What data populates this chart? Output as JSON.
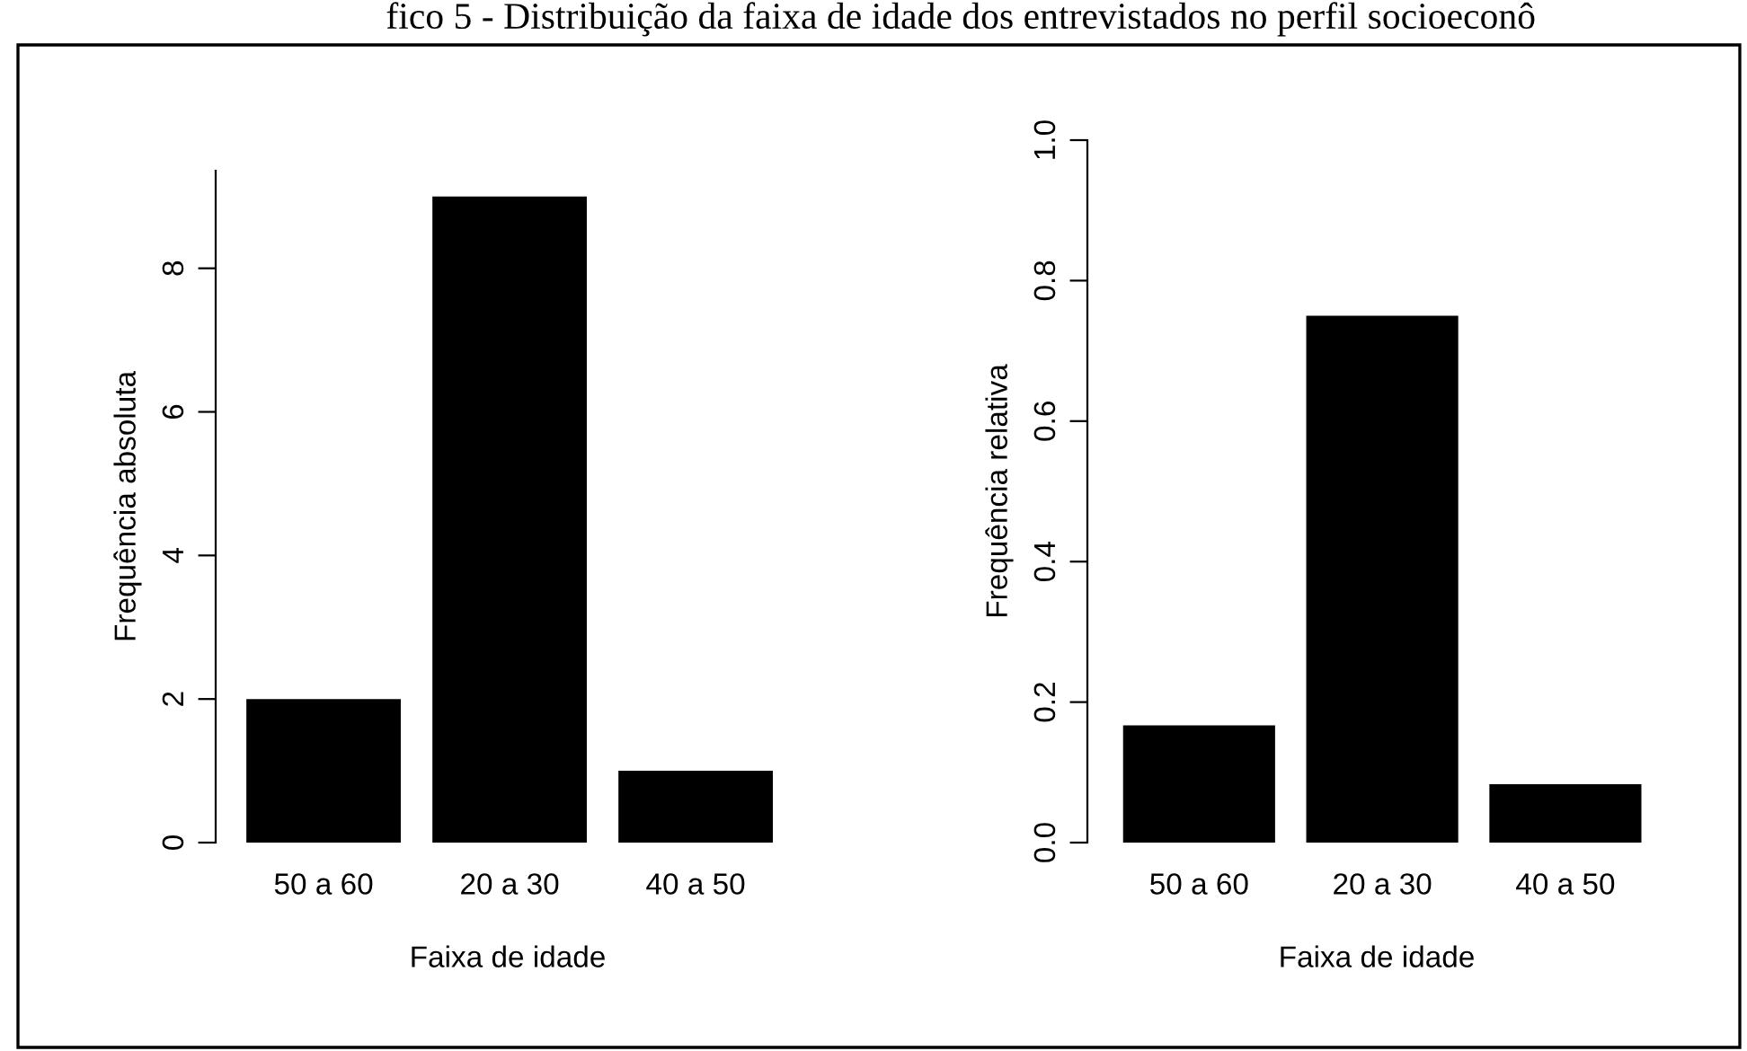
{
  "chart_data": [
    {
      "type": "bar",
      "title": "fico 5 - Distribuição da faixa de idade dos entrevistados no perfil socioeconô",
      "categories": [
        "50 a 60",
        "20 a 30",
        "40 a 50"
      ],
      "values": [
        2,
        9,
        1
      ],
      "color": "#000000",
      "xlabel": "Faixa de idade",
      "ylabel": "Frequência absoluta",
      "ylim": [
        0,
        9.36
      ],
      "yticks": [
        0,
        2,
        4,
        6,
        8
      ],
      "grid": false,
      "legend": false
    },
    {
      "type": "bar",
      "categories": [
        "50 a 60",
        "20 a 30",
        "40 a 50"
      ],
      "values": [
        0.167,
        0.75,
        0.083
      ],
      "color": "#000000",
      "xlabel": "Faixa de idade",
      "ylabel": "Frequência relativa",
      "ylim": [
        0,
        1.0
      ],
      "yticks": [
        {
          "value": 0,
          "label": "0.0"
        },
        {
          "value": 0.2,
          "label": "0.2"
        },
        {
          "value": 0.4,
          "label": "0.4"
        },
        {
          "value": 0.6,
          "label": "0.6"
        },
        {
          "value": 0.8,
          "label": "0.8"
        },
        {
          "value": 1.0,
          "label": "1.0"
        }
      ],
      "grid": false,
      "legend": false
    }
  ]
}
